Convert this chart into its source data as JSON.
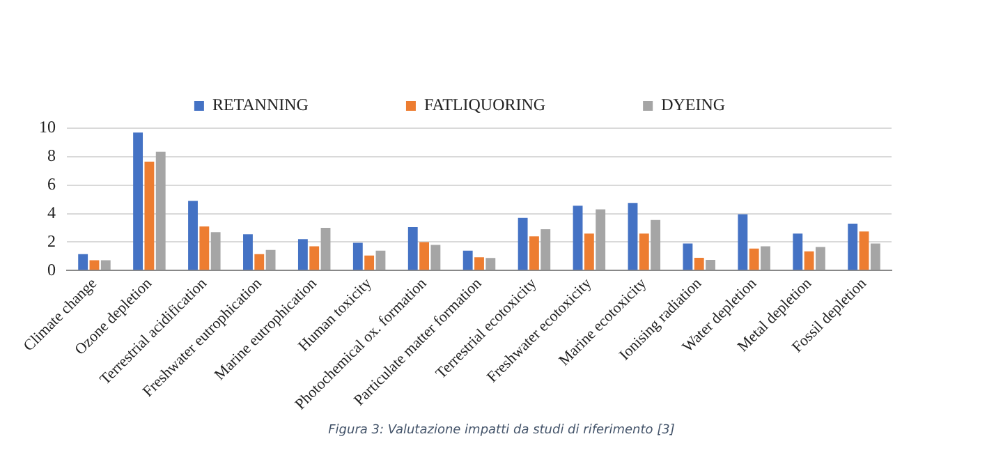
{
  "chart_data": {
    "type": "bar",
    "categories": [
      "Climate change",
      "Ozone depletion",
      "Terrestrial acidification",
      "Freshwater eutrophication",
      "Marine eutrophication",
      "Human toxicity",
      "Photochemical ox. formation",
      "Particulate matter formation",
      "Terrestrial ecotoxicity",
      "Freshwater ecotoxicity",
      "Marine ecotoxicity",
      "Ionising radiation",
      "Water depletion",
      "Metal depletion",
      "Fossil depletion"
    ],
    "series": [
      {
        "name": "RETANNING",
        "color": "#4472c4",
        "values": [
          1.15,
          9.7,
          4.9,
          2.55,
          2.2,
          1.95,
          3.05,
          1.4,
          3.7,
          4.55,
          4.75,
          1.9,
          3.95,
          2.6,
          3.3
        ]
      },
      {
        "name": "FATLIQUORING",
        "color": "#ed7d31",
        "values": [
          0.72,
          7.65,
          3.1,
          1.15,
          1.7,
          1.05,
          2.0,
          0.93,
          2.4,
          2.6,
          2.6,
          0.9,
          1.55,
          1.35,
          2.75
        ]
      },
      {
        "name": "DYEING",
        "color": "#a5a5a5",
        "values": [
          0.72,
          8.35,
          2.7,
          1.45,
          3.0,
          1.4,
          1.8,
          0.88,
          2.9,
          4.3,
          3.55,
          0.75,
          1.7,
          1.65,
          1.9
        ]
      }
    ],
    "ylim": [
      0,
      10
    ],
    "yticks": [
      0,
      2,
      4,
      6,
      8,
      10
    ],
    "grid": "y",
    "legend": "top",
    "annotations": [
      "Figura 3: Valutazione impatti da studi di riferimento [3]"
    ]
  }
}
